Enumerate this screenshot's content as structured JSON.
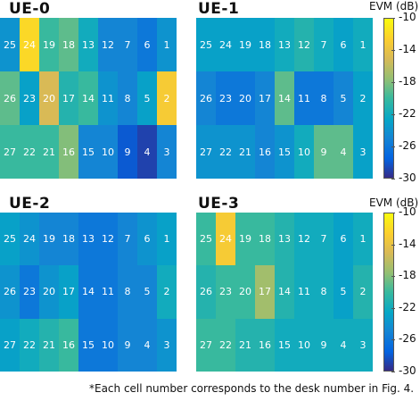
{
  "desk_numbers": [
    [
      25,
      24,
      19,
      18,
      13,
      12,
      7,
      6,
      1
    ],
    [
      26,
      23,
      20,
      17,
      14,
      11,
      8,
      5,
      2
    ],
    [
      27,
      22,
      21,
      16,
      15,
      10,
      9,
      4,
      3
    ]
  ],
  "colorbar": {
    "title": "EVM (dB)",
    "ticks": [
      "-10",
      "-14",
      "-18",
      "-22",
      "-26",
      "-30"
    ],
    "range": [
      -30,
      -10
    ],
    "colormap": "parula"
  },
  "footnote": "*Each cell number corresponds to the desk number in Fig. 4.",
  "chart_data": [
    {
      "type": "heatmap",
      "title": "UE-0",
      "rows": 3,
      "cols": 9,
      "values": [
        [
          -24,
          -12,
          -20,
          -19,
          -22,
          -25,
          -25,
          -26,
          -24
        ],
        [
          -19,
          -23,
          -15,
          -21,
          -20,
          -24,
          -25,
          -23,
          -13
        ],
        [
          -20,
          -20,
          -20,
          -18,
          -25,
          -25,
          -28,
          -29,
          -25
        ]
      ]
    },
    {
      "type": "heatmap",
      "title": "UE-1",
      "rows": 3,
      "cols": 9,
      "values": [
        [
          -23,
          -23,
          -23,
          -23,
          -22,
          -21,
          -22,
          -23,
          -22
        ],
        [
          -25,
          -26,
          -26,
          -25,
          -19,
          -26,
          -26,
          -25,
          -23
        ],
        [
          -24,
          -24,
          -24,
          -25,
          -24,
          -22,
          -19,
          -19,
          -23
        ]
      ]
    },
    {
      "type": "heatmap",
      "title": "UE-2",
      "rows": 3,
      "cols": 9,
      "values": [
        [
          -23,
          -24,
          -25,
          -25,
          -26,
          -26,
          -25,
          -24,
          -23
        ],
        [
          -24,
          -26,
          -24,
          -23,
          -26,
          -26,
          -25,
          -25,
          -22
        ],
        [
          -23,
          -22,
          -21,
          -20,
          -26,
          -26,
          -25,
          -25,
          -24
        ]
      ]
    },
    {
      "type": "heatmap",
      "title": "UE-3",
      "rows": 3,
      "cols": 9,
      "values": [
        [
          -20,
          -13,
          -20,
          -20,
          -21,
          -22,
          -22,
          -23,
          -22
        ],
        [
          -21,
          -20,
          -20,
          -17,
          -21,
          -22,
          -22,
          -23,
          -21
        ],
        [
          -20,
          -20,
          -21,
          -21,
          -22,
          -22,
          -22,
          -22,
          -22
        ]
      ]
    }
  ]
}
